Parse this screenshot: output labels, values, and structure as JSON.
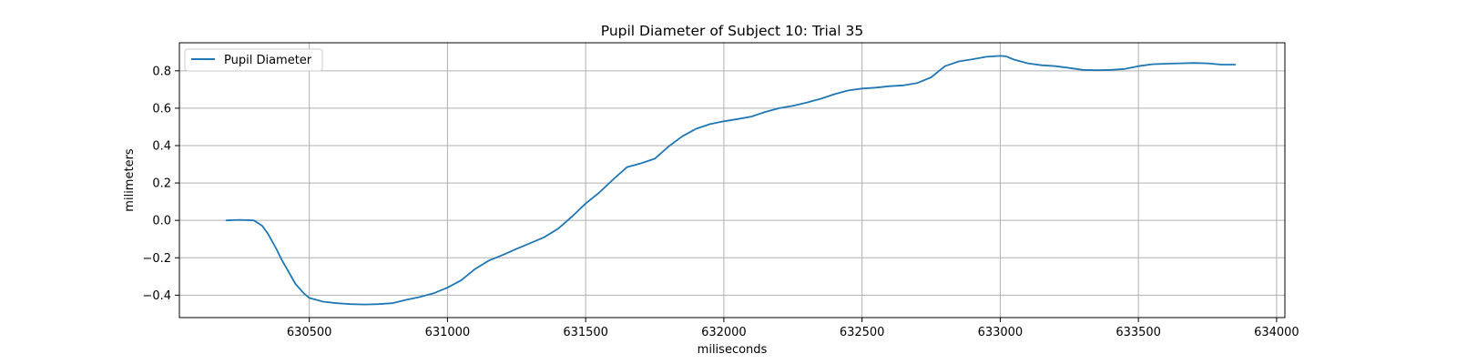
{
  "chart_data": {
    "type": "line",
    "title": "Pupil Diameter of Subject 10: Trial 35",
    "xlabel": "miliseconds",
    "ylabel": "milimeters",
    "xlim": [
      630030,
      634030
    ],
    "ylim": [
      -0.52,
      0.95
    ],
    "xticks": [
      630500,
      631000,
      631500,
      632000,
      632500,
      633000,
      633500,
      634000
    ],
    "yticks": [
      -0.4,
      -0.2,
      0.0,
      0.2,
      0.4,
      0.6,
      0.8
    ],
    "xtick_labels": [
      "630500",
      "631000",
      "631500",
      "632000",
      "632500",
      "633000",
      "633500",
      "634000"
    ],
    "ytick_labels": [
      "−0.4",
      "−0.2",
      "0.0",
      "0.2",
      "0.4",
      "0.6",
      "0.8"
    ],
    "grid": true,
    "legend": {
      "position": "top-left",
      "entries": [
        "Pupil Diameter"
      ]
    },
    "series": [
      {
        "name": "Pupil Diameter",
        "color": "#1f77b4",
        "x": [
          630200,
          630250,
          630300,
          630330,
          630350,
          630380,
          630400,
          630450,
          630480,
          630500,
          630550,
          630600,
          630650,
          630700,
          630750,
          630800,
          630850,
          630900,
          630950,
          631000,
          631050,
          631100,
          631150,
          631200,
          631250,
          631300,
          631350,
          631400,
          631450,
          631500,
          631550,
          631600,
          631650,
          631700,
          631750,
          631800,
          631850,
          631900,
          631950,
          632000,
          632050,
          632100,
          632150,
          632200,
          632250,
          632300,
          632350,
          632400,
          632450,
          632500,
          632550,
          632600,
          632650,
          632700,
          632750,
          632800,
          632850,
          632900,
          632950,
          633000,
          633020,
          633050,
          633100,
          633150,
          633200,
          633250,
          633300,
          633350,
          633400,
          633450,
          633500,
          633550,
          633600,
          633650,
          633700,
          633750,
          633800,
          633850
        ],
        "y": [
          0.0,
          0.003,
          0.0,
          -0.03,
          -0.07,
          -0.15,
          -0.21,
          -0.34,
          -0.39,
          -0.415,
          -0.435,
          -0.443,
          -0.448,
          -0.45,
          -0.448,
          -0.443,
          -0.425,
          -0.41,
          -0.39,
          -0.36,
          -0.32,
          -0.26,
          -0.215,
          -0.185,
          -0.152,
          -0.122,
          -0.09,
          -0.045,
          0.02,
          0.09,
          0.15,
          0.22,
          0.285,
          0.305,
          0.33,
          0.395,
          0.45,
          0.49,
          0.515,
          0.53,
          0.542,
          0.555,
          0.58,
          0.6,
          0.613,
          0.63,
          0.65,
          0.675,
          0.695,
          0.705,
          0.71,
          0.718,
          0.722,
          0.735,
          0.765,
          0.825,
          0.85,
          0.862,
          0.875,
          0.88,
          0.878,
          0.86,
          0.84,
          0.83,
          0.825,
          0.815,
          0.805,
          0.803,
          0.805,
          0.81,
          0.825,
          0.835,
          0.838,
          0.84,
          0.842,
          0.84,
          0.833,
          0.833
        ]
      }
    ]
  }
}
